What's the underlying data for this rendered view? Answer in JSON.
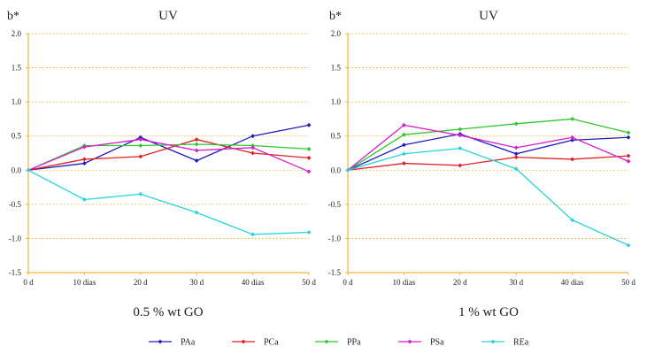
{
  "chart_data": [
    {
      "type": "line",
      "ylabel": "b*",
      "title": "UV",
      "subtitle": "0.5 % wt GO",
      "categories": [
        "0 d",
        "10 dias",
        "20 d",
        "30 d",
        "40 dias",
        "50 d"
      ],
      "ylim": [
        -1.5,
        2.0
      ],
      "yticks": [
        2.0,
        1.5,
        1.0,
        0.5,
        0.0,
        -0.5,
        -1.0,
        -1.5
      ],
      "ytick_labels": [
        "2.0",
        "1.5",
        "1.0",
        "0.5",
        "0.0",
        "-0.5",
        "-1.0",
        "-1.5"
      ],
      "grid": true,
      "series": [
        {
          "name": "PAa",
          "values": [
            0,
            0.1,
            0.48,
            0.14,
            0.5,
            0.66
          ]
        },
        {
          "name": "PCa",
          "values": [
            0,
            0.16,
            0.2,
            0.45,
            0.25,
            0.18
          ]
        },
        {
          "name": "PPa",
          "values": [
            0,
            0.36,
            0.36,
            0.38,
            0.36,
            0.31
          ]
        },
        {
          "name": "PSa",
          "values": [
            0,
            0.34,
            0.45,
            0.29,
            0.33,
            -0.02
          ]
        },
        {
          "name": "REa",
          "values": [
            0,
            -0.43,
            -0.35,
            -0.62,
            -0.94,
            -0.91
          ]
        }
      ]
    },
    {
      "type": "line",
      "ylabel": "b*",
      "title": "UV",
      "subtitle": "1 % wt GO",
      "categories": [
        "0 d",
        "10 dias",
        "20 d",
        "30 d",
        "40 dias",
        "50 d"
      ],
      "ylim": [
        -1.5,
        2.0
      ],
      "yticks": [
        2.0,
        1.5,
        1.0,
        0.5,
        0.0,
        -0.5,
        -1.0,
        -1.5
      ],
      "ytick_labels": [
        "2.0",
        "1.5",
        "1.0",
        "0.5",
        "0.0",
        "-0.5",
        "-1.0",
        "-1.5"
      ],
      "grid": true,
      "series": [
        {
          "name": "PAa",
          "values": [
            0,
            0.37,
            0.53,
            0.24,
            0.44,
            0.48
          ]
        },
        {
          "name": "PCa",
          "values": [
            0,
            0.1,
            0.07,
            0.19,
            0.16,
            0.21
          ]
        },
        {
          "name": "PPa",
          "values": [
            0,
            0.52,
            0.6,
            0.68,
            0.75,
            0.55
          ]
        },
        {
          "name": "PSa",
          "values": [
            0,
            0.66,
            0.51,
            0.33,
            0.48,
            0.13
          ]
        },
        {
          "name": "REa",
          "values": [
            0,
            0.24,
            0.32,
            0.02,
            -0.73,
            -1.1
          ]
        }
      ]
    }
  ],
  "legend": {
    "placement": "bottom-center",
    "items": [
      {
        "name": "PAa",
        "color": "#1f1fbf"
      },
      {
        "name": "PCa",
        "color": "#e02020"
      },
      {
        "name": "PPa",
        "color": "#2ec82e"
      },
      {
        "name": "PSa",
        "color": "#d81fd0"
      },
      {
        "name": "REa",
        "color": "#27d4d8"
      }
    ]
  },
  "colors": {
    "axis": "#f2b437",
    "grid": "#f2b437"
  }
}
